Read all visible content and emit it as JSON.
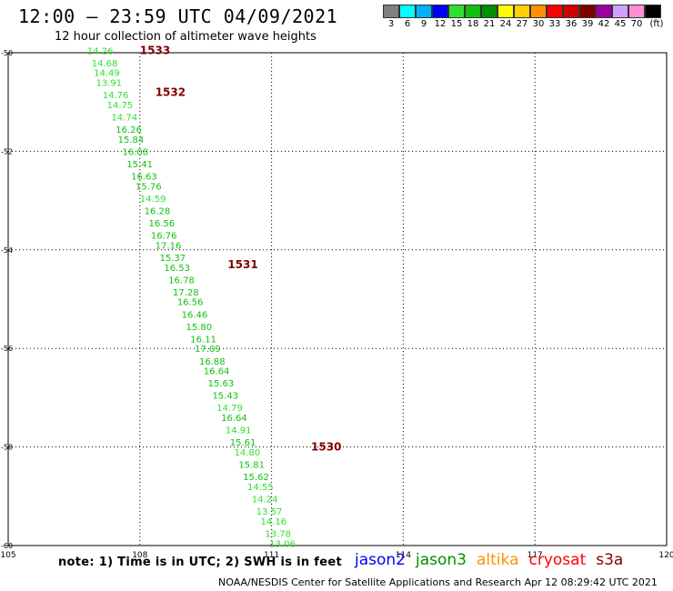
{
  "title": "12:00 – 23:59 UTC 04/09/2021",
  "subtitle": "12 hour collection of altimeter wave heights",
  "legend": {
    "colors": [
      "#808080",
      "#00ffff",
      "#00b0ff",
      "#0000ff",
      "#30e030",
      "#10c010",
      "#009000",
      "#ffff00",
      "#ffd000",
      "#ff9000",
      "#ff0000",
      "#d00000",
      "#800000",
      "#a000a0",
      "#d0a0ff",
      "#ff90d0",
      "#000000"
    ],
    "labels": [
      "3",
      "6",
      "9",
      "12",
      "15",
      "18",
      "21",
      "24",
      "27",
      "30",
      "33",
      "36",
      "39",
      "42",
      "45",
      "70",
      "(ft)"
    ]
  },
  "note": "note:  1) Time is in UTC;  2) SWH is in feet",
  "missions": [
    {
      "name": "jason2",
      "color": "#0000ff"
    },
    {
      "name": "jason3",
      "color": "#009000"
    },
    {
      "name": "altika",
      "color": "#ff9000"
    },
    {
      "name": "cryosat",
      "color": "#ff0000"
    },
    {
      "name": "s3a",
      "color": "#800000"
    }
  ],
  "credit": "NOAA/NESDIS Center for Satellite Applications and Research    Apr 12 08:29:42 UTC 2021",
  "chart_data": {
    "type": "scatter",
    "xlabel": "",
    "ylabel": "",
    "xlim": [
      105,
      120
    ],
    "ylim": [
      -60,
      -50
    ],
    "x_ticks": [
      "105",
      "108",
      "111",
      "114",
      "117",
      "120"
    ],
    "y_ticks": [
      "-50",
      "-52",
      "-54",
      "-56",
      "-58",
      "-60"
    ],
    "grid": "dotted",
    "time_labels": [
      {
        "text": "1533",
        "x": 108.0,
        "y": -49.95
      },
      {
        "text": "1532",
        "x": 108.35,
        "y": -50.8
      },
      {
        "text": "1531",
        "x": 110.0,
        "y": -54.3
      },
      {
        "text": "1530",
        "x": 111.9,
        "y": -58.0
      }
    ],
    "points": [
      {
        "x": 106.8,
        "y": -49.95,
        "value": "14.26"
      },
      {
        "x": 106.9,
        "y": -50.2,
        "value": "14.68"
      },
      {
        "x": 106.95,
        "y": -50.4,
        "value": "14.49"
      },
      {
        "x": 107.0,
        "y": -50.6,
        "value": "13.91"
      },
      {
        "x": 107.15,
        "y": -50.85,
        "value": "14.76"
      },
      {
        "x": 107.25,
        "y": -51.05,
        "value": "14.75"
      },
      {
        "x": 107.35,
        "y": -51.3,
        "value": "14.74"
      },
      {
        "x": 107.45,
        "y": -51.55,
        "value": "16.26"
      },
      {
        "x": 107.5,
        "y": -51.75,
        "value": "15.84"
      },
      {
        "x": 107.6,
        "y": -52.0,
        "value": "16.08"
      },
      {
        "x": 107.7,
        "y": -52.25,
        "value": "15.41"
      },
      {
        "x": 107.8,
        "y": -52.5,
        "value": "16.63"
      },
      {
        "x": 107.9,
        "y": -52.7,
        "value": "15.76"
      },
      {
        "x": 108.0,
        "y": -52.95,
        "value": "14.59"
      },
      {
        "x": 108.1,
        "y": -53.2,
        "value": "16.28"
      },
      {
        "x": 108.2,
        "y": -53.45,
        "value": "16.56"
      },
      {
        "x": 108.25,
        "y": -53.7,
        "value": "16.76"
      },
      {
        "x": 108.35,
        "y": -53.9,
        "value": "17.16"
      },
      {
        "x": 108.45,
        "y": -54.15,
        "value": "15.37"
      },
      {
        "x": 108.55,
        "y": -54.35,
        "value": "16.53"
      },
      {
        "x": 108.65,
        "y": -54.6,
        "value": "16.78"
      },
      {
        "x": 108.75,
        "y": -54.85,
        "value": "17.28"
      },
      {
        "x": 108.85,
        "y": -55.05,
        "value": "16.56"
      },
      {
        "x": 108.95,
        "y": -55.3,
        "value": "16.46"
      },
      {
        "x": 109.05,
        "y": -55.55,
        "value": "15.80"
      },
      {
        "x": 109.15,
        "y": -55.8,
        "value": "16.11"
      },
      {
        "x": 109.25,
        "y": -56.0,
        "value": "17.09"
      },
      {
        "x": 109.35,
        "y": -56.25,
        "value": "16.88"
      },
      {
        "x": 109.45,
        "y": -56.45,
        "value": "16.64"
      },
      {
        "x": 109.55,
        "y": -56.7,
        "value": "15.63"
      },
      {
        "x": 109.65,
        "y": -56.95,
        "value": "15.43"
      },
      {
        "x": 109.75,
        "y": -57.2,
        "value": "14.79"
      },
      {
        "x": 109.85,
        "y": -57.4,
        "value": "16.64"
      },
      {
        "x": 109.95,
        "y": -57.65,
        "value": "14.91"
      },
      {
        "x": 110.05,
        "y": -57.9,
        "value": "15.61"
      },
      {
        "x": 110.15,
        "y": -58.1,
        "value": "14.80"
      },
      {
        "x": 110.25,
        "y": -58.35,
        "value": "15.81"
      },
      {
        "x": 110.35,
        "y": -58.6,
        "value": "15.62"
      },
      {
        "x": 110.45,
        "y": -58.8,
        "value": "14.55"
      },
      {
        "x": 110.55,
        "y": -59.05,
        "value": "14.24"
      },
      {
        "x": 110.65,
        "y": -59.3,
        "value": "13.57"
      },
      {
        "x": 110.75,
        "y": -59.5,
        "value": "14.16"
      },
      {
        "x": 110.85,
        "y": -59.75,
        "value": "13.78"
      },
      {
        "x": 110.95,
        "y": -59.95,
        "value": "13.06"
      }
    ]
  }
}
